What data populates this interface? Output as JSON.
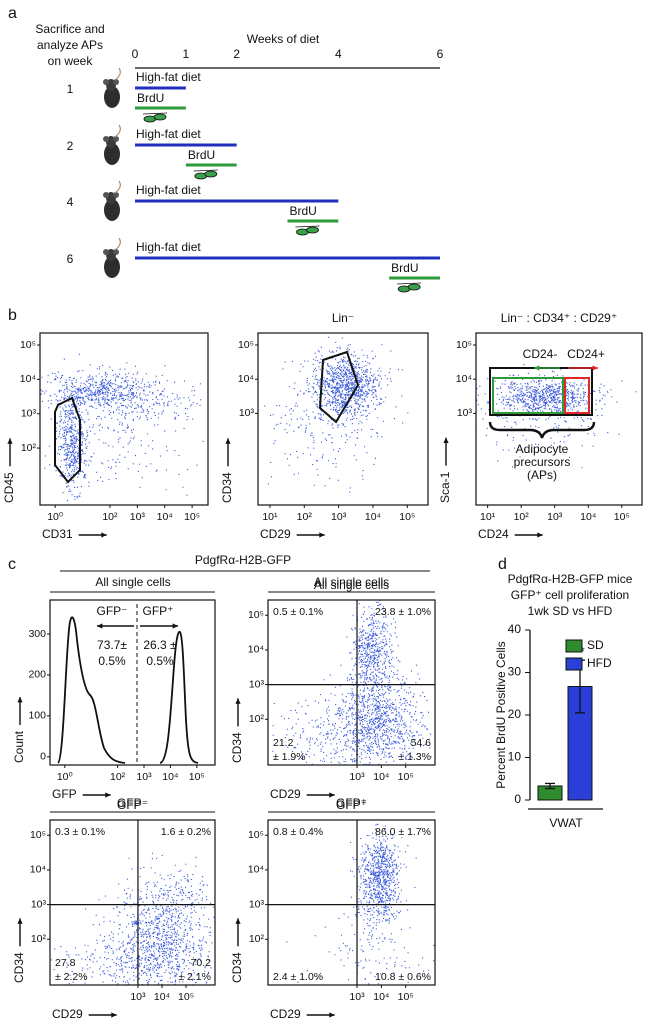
{
  "panel_labels": {
    "a": "a",
    "b": "b",
    "c": "c",
    "d": "d"
  },
  "panel_a": {
    "heading": [
      "Sacrifice and",
      "analyze APs",
      "on week"
    ],
    "axis_label": "Weeks of diet",
    "xlim": [
      0,
      6
    ],
    "xticks": [
      0,
      1,
      2,
      4,
      6
    ],
    "diet_color": "#1f2fbf",
    "brdu_color": "#2e9a3a",
    "rows": [
      {
        "week": 1,
        "diet": "High-fat diet",
        "diet_span": [
          0,
          1
        ],
        "brdu": "BrdU",
        "brdu_span": [
          0,
          1
        ]
      },
      {
        "week": 2,
        "diet": "High-fat diet",
        "diet_span": [
          0,
          2
        ],
        "brdu": "BrdU",
        "brdu_span": [
          1,
          2
        ]
      },
      {
        "week": 4,
        "diet": "High-fat diet",
        "diet_span": [
          0,
          4
        ],
        "brdu": "BrdU",
        "brdu_span": [
          3,
          4
        ]
      },
      {
        "week": 6,
        "diet": "High-fat diet",
        "diet_span": [
          0,
          6
        ],
        "brdu": "BrdU",
        "brdu_span": [
          5,
          6
        ]
      }
    ]
  },
  "panel_b": {
    "plots": [
      {
        "xlabel": "CD31",
        "ylabel": "CD45",
        "log": true,
        "xlim": [
          0.28,
          380000
        ],
        "ylim": [
          2.2,
          224000
        ],
        "xticks": [
          {
            "value": 1,
            "label": "10⁰"
          },
          {
            "value": 100,
            "label": "10²"
          },
          {
            "value": 1000,
            "label": "10³"
          },
          {
            "value": 10000,
            "label": "10⁴"
          },
          {
            "value": 100000,
            "label": "10⁵"
          }
        ],
        "yticks": [
          {
            "value": 100,
            "label": "10²"
          },
          {
            "value": 1000,
            "label": "10³"
          },
          {
            "value": 10000,
            "label": "10⁴"
          },
          {
            "value": 100000,
            "label": "10⁵"
          }
        ]
      },
      {
        "title": "Lin⁻",
        "xlabel": "CD29",
        "ylabel": "CD34",
        "log": true,
        "xlim": [
          4.5,
          400000
        ],
        "ylim": [
          2.1,
          224000
        ],
        "xticks": [
          {
            "value": 10,
            "label": "10¹"
          },
          {
            "value": 100,
            "label": "10²"
          },
          {
            "value": 1000,
            "label": "10³"
          },
          {
            "value": 10000,
            "label": "10⁴"
          },
          {
            "value": 100000,
            "label": "10⁵"
          }
        ],
        "yticks": [
          {
            "value": 1000,
            "label": "10³"
          },
          {
            "value": 10000,
            "label": "10⁴"
          },
          {
            "value": 100000,
            "label": "10⁵"
          }
        ]
      },
      {
        "title": "Lin⁻ : CD34⁺ : CD29⁺",
        "xlabel": "CD24",
        "ylabel": "Sca-1",
        "log": true,
        "xlim": [
          4.5,
          400000
        ],
        "ylim": [
          2.1,
          224000
        ],
        "xticks": [
          {
            "value": 10,
            "label": "10¹"
          },
          {
            "value": 100,
            "label": "10²"
          },
          {
            "value": 1000,
            "label": "10³"
          },
          {
            "value": 10000,
            "label": "10⁴"
          },
          {
            "value": 100000,
            "label": "10⁵"
          }
        ],
        "yticks": [
          {
            "value": 1000,
            "label": "10³"
          },
          {
            "value": 10000,
            "label": "10⁴"
          },
          {
            "value": 100000,
            "label": "10⁵"
          }
        ]
      }
    ],
    "annotations": {
      "cd24_neg": "CD24-",
      "cd24_pos": "CD24+",
      "aps": [
        "Adipocyte",
        "precursors",
        "(APs)"
      ]
    }
  },
  "panel_c": {
    "header": "PdgfRα-H2B-GFP",
    "histogram": {
      "title": "All single cells",
      "xlabel": "GFP",
      "ylabel": "Count",
      "log": true,
      "xlim": [
        0.275,
        490000
      ],
      "ylim": [
        -20,
        383
      ],
      "xticks": [
        {
          "value": 1,
          "label": "10⁰"
        },
        {
          "value": 100,
          "label": "10²"
        },
        {
          "value": 1000,
          "label": "10³"
        },
        {
          "value": 10000,
          "label": "10⁴"
        },
        {
          "value": 100000,
          "label": "10⁵"
        }
      ],
      "yticks": [
        0,
        100,
        200,
        300
      ],
      "negative": {
        "label": "GFP⁻",
        "percent": [
          "73.7±",
          "0.5%"
        ]
      },
      "positive": {
        "label": "GFP⁺",
        "percent": [
          "26.3 ±",
          "0.5%"
        ]
      }
    },
    "quadrant_plots": [
      {
        "title": "All single cells",
        "xlabel": "CD29",
        "ylabel": "CD34",
        "log": true,
        "xlim": [
          0.22,
          1600000
        ],
        "ylim": [
          4.8,
          275000
        ],
        "xticks": [
          {
            "value": 1000,
            "label": "10³"
          },
          {
            "value": 10000,
            "label": "10⁴"
          },
          {
            "value": 100000,
            "label": "10⁵"
          }
        ],
        "yticks": [
          {
            "value": 100,
            "label": "10²"
          },
          {
            "value": 1000,
            "label": "10³"
          },
          {
            "value": 10000,
            "label": "10⁴"
          },
          {
            "value": 100000,
            "label": "10⁵"
          }
        ],
        "upper_left": [
          "0.5 ± 0.1%"
        ],
        "upper_right": [
          "23.8 ± 1.0%"
        ],
        "lower_left": [
          "21.2",
          "± 1.9%"
        ],
        "lower_right": [
          "54.6",
          "± 1.3%"
        ]
      },
      {
        "title": "GFP⁻",
        "xlabel": "CD29",
        "ylabel": "CD34",
        "log": true,
        "xlim": [
          0.22,
          1600000
        ],
        "ylim": [
          4.8,
          275000
        ],
        "xticks": [
          {
            "value": 1000,
            "label": "10³"
          },
          {
            "value": 10000,
            "label": "10⁴"
          },
          {
            "value": 100000,
            "label": "10⁵"
          }
        ],
        "yticks": [
          {
            "value": 100,
            "label": "10²"
          },
          {
            "value": 1000,
            "label": "10³"
          },
          {
            "value": 10000,
            "label": "10⁴"
          },
          {
            "value": 100000,
            "label": "10⁵"
          }
        ],
        "upper_left": [
          "0.3 ± 0.1%"
        ],
        "upper_right": [
          "1.6 ± 0.2%"
        ],
        "lower_left": [
          "27.8",
          "± 2.2%"
        ],
        "lower_right": [
          "70.2",
          "± 2.1%"
        ]
      },
      {
        "title": "GFP⁺",
        "xlabel": "CD29",
        "ylabel": "CD34",
        "log": true,
        "xlim": [
          0.22,
          1600000
        ],
        "ylim": [
          4.8,
          275000
        ],
        "xticks": [
          {
            "value": 1000,
            "label": "10³"
          },
          {
            "value": 10000,
            "label": "10⁴"
          },
          {
            "value": 100000,
            "label": "10⁵"
          }
        ],
        "yticks": [
          {
            "value": 100,
            "label": "10²"
          },
          {
            "value": 1000,
            "label": "10³"
          },
          {
            "value": 10000,
            "label": "10⁴"
          },
          {
            "value": 100000,
            "label": "10⁵"
          }
        ],
        "upper_left": [
          "0.8 ± 0.4%"
        ],
        "upper_right": [
          "86.0 ± 1.7%"
        ],
        "lower_left": [
          "2.4 ± 1.0%"
        ],
        "lower_right": [
          "10.8 ± 0.6%"
        ]
      }
    ]
  },
  "chart_data": {
    "type": "bar",
    "title": [
      "PdgfRα-H2B-GFP mice",
      "GFP⁺ cell proliferation",
      "1wk SD vs HFD"
    ],
    "ylabel": "Percent BrdU Positive Cells",
    "categories": [
      "VWAT"
    ],
    "series": [
      {
        "name": "SD",
        "color": "#2e8b2e",
        "values": [
          3.3
        ],
        "errors": [
          0.6
        ]
      },
      {
        "name": "HFD",
        "color": "#2a3fd8",
        "values": [
          26.7
        ],
        "errors": [
          6.2
        ]
      }
    ],
    "ylim": [
      0,
      40
    ],
    "yticks": [
      0,
      10,
      20,
      30,
      40
    ],
    "annotation": "**",
    "legend": "upper right"
  }
}
